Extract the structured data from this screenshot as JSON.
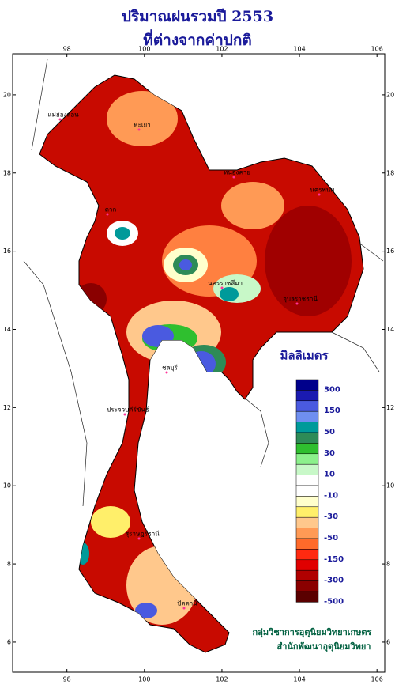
{
  "header": {
    "title_lines": [
      "ปริมาณฝนรวมปี  2553",
      "ที่ต่างจากค่าปกติ"
    ]
  },
  "map": {
    "xlim": [
      96.6,
      106.2
    ],
    "ylim": [
      5.23,
      21.05
    ],
    "xticks": [
      98,
      100,
      102,
      104,
      106
    ],
    "yticks": [
      6,
      8,
      10,
      12,
      14,
      16,
      18,
      20
    ],
    "places": [
      "แม่ฮ่องสอน",
      "พะเยา",
      "ตาก",
      "หนองคาย",
      "นครพนม",
      "นครราชสีมา",
      "อุบลราชธานี",
      "ชลบุรี",
      "ประจวบคีรีขันธ์",
      "สุราษฎร์ธานี",
      "ปัตตานี"
    ]
  },
  "legend": {
    "title": "มิลลิเมตร",
    "labels": [
      300,
      150,
      50,
      30,
      10,
      -10,
      -30,
      -50,
      -150,
      -300,
      -500
    ],
    "colors": [
      "#00008b",
      "#1a1ab0",
      "#4a5ae0",
      "#6f8ff0",
      "#009a9a",
      "#2e8b57",
      "#2fbf2f",
      "#8cf08c",
      "#c8f8c8",
      "#ffffff",
      "#ffffff",
      "#ffffcc",
      "#ffef6a",
      "#ffc88c",
      "#ff9a55",
      "#ff6a2a",
      "#ff2a10",
      "#e00000",
      "#b00000",
      "#8a0000",
      "#5a0000"
    ]
  },
  "credits": [
    "กลุ่มวิชาการอุตุนิยมวิทยาเกษตร",
    "สำนักพัฒนาอุตุนิยมวิทยา"
  ]
}
